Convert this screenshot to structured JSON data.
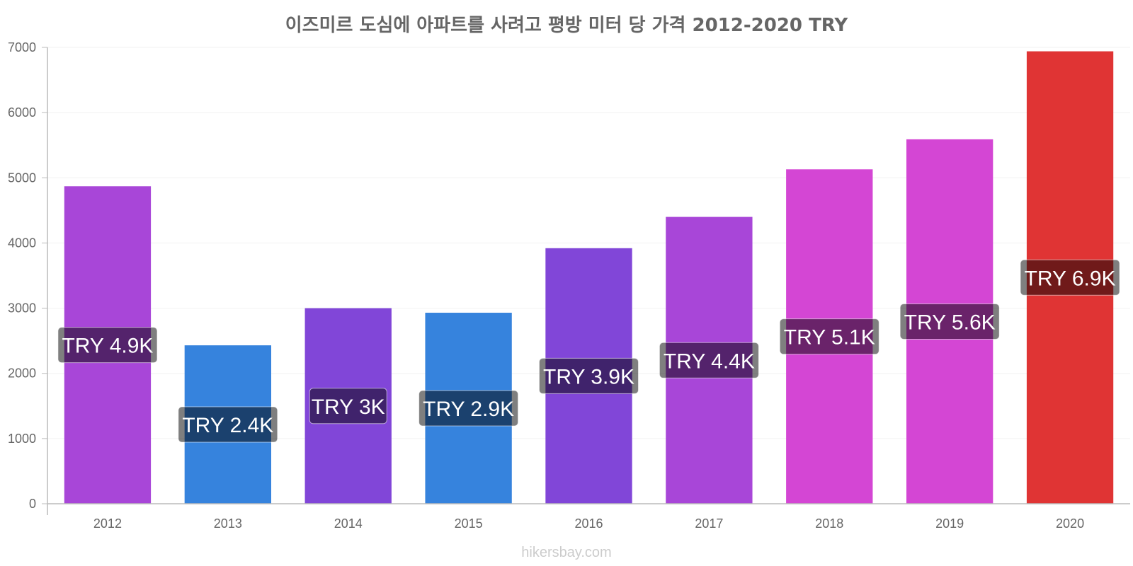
{
  "chart_data": {
    "type": "bar",
    "title": "이즈미르 도심에 아파트를 사려고 평방 미터 당 가격 2012-2020 TRY",
    "xlabel": "",
    "ylabel": "",
    "categories": [
      "2012",
      "2013",
      "2014",
      "2015",
      "2016",
      "2017",
      "2018",
      "2019",
      "2020"
    ],
    "values": [
      4870,
      2430,
      3000,
      2930,
      3920,
      4400,
      5130,
      5590,
      6940
    ],
    "value_labels": [
      "TRY 4.9K",
      "TRY 2.4K",
      "TRY 3K",
      "TRY 2.9K",
      "TRY 3.9K",
      "TRY 4.4K",
      "TRY 5.1K",
      "TRY 5.6K",
      "TRY 6.9K"
    ],
    "colors": [
      "#a846d8",
      "#3683dd",
      "#8146d8",
      "#3683dd",
      "#8146d8",
      "#a846d8",
      "#d446d4",
      "#d446d4",
      "#e03434"
    ],
    "ylim": [
      0,
      7000
    ],
    "yticks": [
      "0",
      "1000",
      "2000",
      "3000",
      "4000",
      "5000",
      "6000",
      "7000"
    ],
    "grid": true,
    "legend": "none"
  },
  "footer": "hikersbay.com"
}
